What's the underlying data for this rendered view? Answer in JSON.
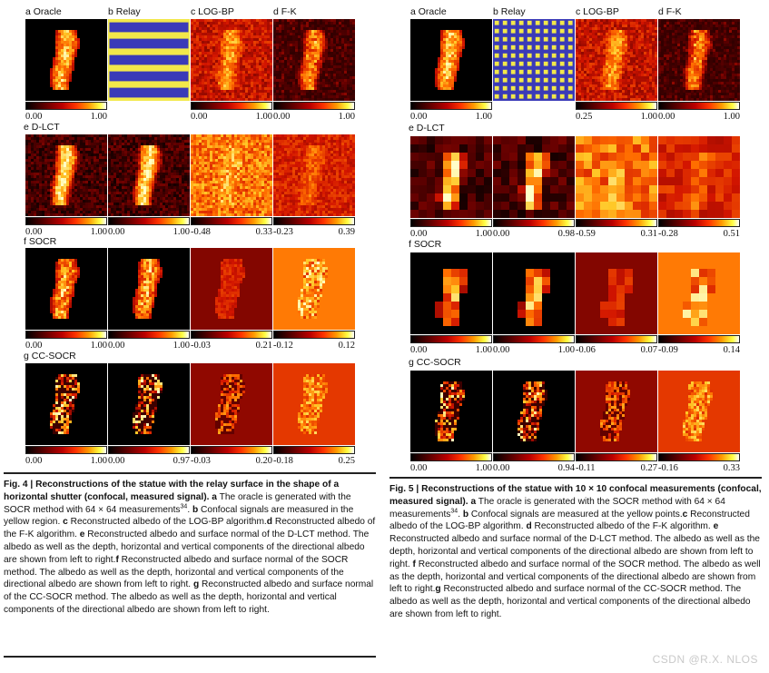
{
  "left": {
    "panels": {
      "a": "a Oracle",
      "b": "b Relay",
      "c": "c LOG-BP",
      "d": "d F-K"
    },
    "rows": {
      "e": "e D-LCT",
      "f": "f SOCR",
      "g": "g CC-SOCR"
    },
    "ticks": {
      "r1": [
        [
          "0.00",
          "1.00"
        ],
        [
          "",
          ""
        ],
        [
          "0.00",
          "1.00"
        ],
        [
          "0.00",
          "1.00"
        ]
      ],
      "r2": [
        [
          "0.00",
          "1.00"
        ],
        [
          "0.00",
          "1.00"
        ],
        [
          "-0.48",
          "0.33"
        ],
        [
          "-0.23",
          "0.39"
        ]
      ],
      "r3": [
        [
          "0.00",
          "1.00"
        ],
        [
          "0.00",
          "1.00"
        ],
        [
          "-0.03",
          "0.21"
        ],
        [
          "-0.12",
          "0.12"
        ]
      ],
      "r4": [
        [
          "0.00",
          "1.00"
        ],
        [
          "0.00",
          "0.97"
        ],
        [
          "-0.03",
          "0.20"
        ],
        [
          "-0.18",
          "0.25"
        ]
      ]
    },
    "caption": {
      "bold1": "Fig. 4 | Reconstructions of the statue with the relay surface in the shape of a horizontal shutter (confocal, measured signal).",
      "a_label": "a",
      "a_text": " The oracle is generated with the SOCR method with 64 × 64 measurements",
      "a_ref": "34",
      "b_label": "b",
      "b_text": " Confocal signals are measured in the yellow region. ",
      "c_label": "c",
      "c_text": " Reconstructed albedo of the LOG-BP algorithm.",
      "d_label": "d",
      "d_text": " Reconstructed albedo of the F-K algorithm. ",
      "e_label": "e",
      "e_text": " Reconstructed albedo and surface normal of the D-LCT method. The albedo as well as the depth, horizontal and vertical components of the directional albedo are shown from left to right.",
      "f_label": "f",
      "f_text": " Reconstructed albedo and surface normal of the SOCR method. The albedo as well as the depth, horizontal and vertical components of the directional albedo are shown from left to right. ",
      "g_label": "g",
      "g_text": " Reconstructed albedo and surface normal of the CC-SOCR method. The albedo as well as the depth, horizontal and vertical components of the directional albedo are shown from left to right."
    }
  },
  "right": {
    "panels": {
      "a": "a Oracle",
      "b": "b Relay",
      "c": "c LOG-BP",
      "d": "d F-K"
    },
    "rows": {
      "e": "e D-LCT",
      "f": "f SOCR",
      "g": "g CC-SOCR"
    },
    "ticks": {
      "r1": [
        [
          "0.00",
          "1.00"
        ],
        [
          "",
          ""
        ],
        [
          "0.25",
          "1.00"
        ],
        [
          "0.00",
          "1.00"
        ]
      ],
      "r2": [
        [
          "0.00",
          "1.00"
        ],
        [
          "0.00",
          "0.98"
        ],
        [
          "-0.59",
          "0.31"
        ],
        [
          "-0.28",
          "0.51"
        ]
      ],
      "r3": [
        [
          "0.00",
          "1.00"
        ],
        [
          "0.00",
          "1.00"
        ],
        [
          "-0.06",
          "0.07"
        ],
        [
          "-0.09",
          "0.14"
        ]
      ],
      "r4": [
        [
          "0.00",
          "1.00"
        ],
        [
          "0.00",
          "0.94"
        ],
        [
          "-0.11",
          "0.27"
        ],
        [
          "-0.16",
          "0.33"
        ]
      ]
    },
    "caption": {
      "bold1": "Fig. 5 | Reconstructions of the statue with 10 × 10 confocal measurements (confocal, measured signal).",
      "a_label": "a",
      "a_text": " The oracle is generated with the SOCR method with 64 × 64 measurements",
      "a_ref": "34",
      "b_label": "b",
      "b_text": " Confocal signals are measured at the yellow points.",
      "c_label": "c",
      "c_text": " Reconstructed albedo of the LOG-BP algorithm. ",
      "d_label": "d",
      "d_text": " Reconstructed albedo of the F-K algorithm. ",
      "e_label": "e",
      "e_text": " Reconstructed albedo and surface normal of the D-LCT method. The albedo as well as the depth, horizontal and vertical components of the directional albedo are shown from left to right. ",
      "f_label": "f",
      "f_text": " Reconstructed albedo and surface normal of the SOCR method. The albedo as well as the depth, horizontal and vertical components of the directional albedo are shown from left to right.",
      "g_label": "g",
      "g_text": " Reconstructed albedo and surface normal of the CC-SOCR method. The albedo as well as the depth, horizontal and vertical components of the directional albedo are shown from left to right."
    }
  },
  "watermark": "CSDN @R.X. NLOS",
  "colors": {
    "relay_blue": "#3a3ab8",
    "relay_yellow": "#f2e84a",
    "hot_dark": "#1a0000",
    "hot_red": "#cc1100",
    "hot_orange": "#ff7700",
    "hot_yellow": "#ffff66"
  }
}
